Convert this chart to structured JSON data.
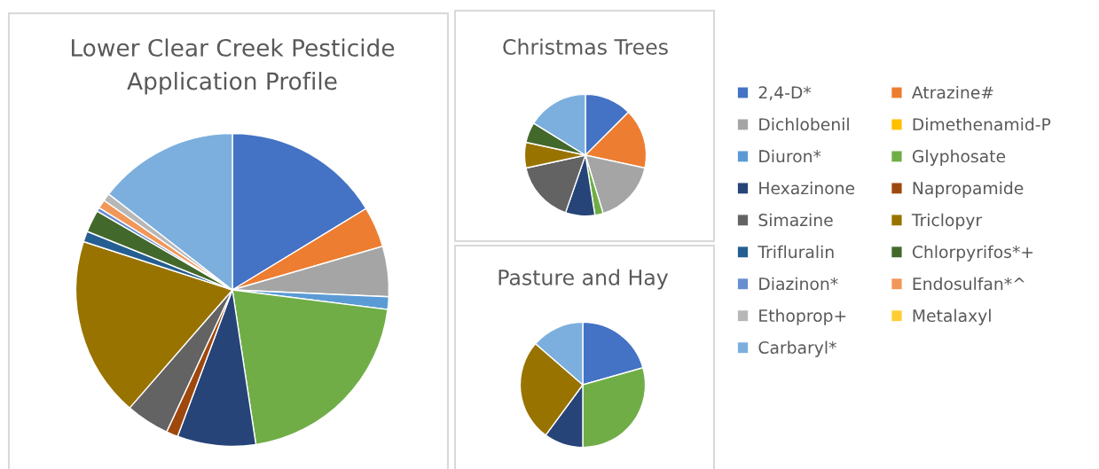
{
  "chart_data": [
    {
      "type": "pie",
      "title": "Lower Clear Creek Pesticide\nApplication Profile",
      "legend": "right",
      "categories": [
        "2,4-D*",
        "Atrazine#",
        "Dichlobenil",
        "Dimethenamid-P",
        "Diuron*",
        "Glyphosate",
        "Hexazinone",
        "Napropamide",
        "Simazine",
        "Triclopyr",
        "Trifluralin",
        "Chlorpyrifos*+",
        "Diazinon*",
        "Endosulfan*^",
        "Ethoprop+",
        "Metalaxyl",
        "Carbaryl*"
      ],
      "values": [
        16.3,
        4.2,
        5.2,
        0,
        1.3,
        20.6,
        8.1,
        1.2,
        4.5,
        18.6,
        1.1,
        2.3,
        0.4,
        0.9,
        0.8,
        0,
        14.5
      ],
      "colors": [
        "#4472c4",
        "#ed7d31",
        "#a5a5a5",
        "#ffc000",
        "#5b9bd5",
        "#70ad47",
        "#264478",
        "#9e480e",
        "#636363",
        "#997300",
        "#255e91",
        "#43682b",
        "#698ed0",
        "#f1975a",
        "#b7b7b7",
        "#ffcd33",
        "#7cafdd"
      ]
    },
    {
      "type": "pie",
      "title": "Christmas Trees",
      "categories": [
        null,
        null,
        null,
        null,
        null,
        null,
        null,
        null,
        null
      ],
      "values": [
        12.5,
        15.9,
        16.9,
        2.2,
        7.8,
        16.3,
        6.8,
        5.4,
        16.2
      ],
      "colors": [
        "#4472c4",
        "#ed7d31",
        "#a5a5a5",
        "#70ad47",
        "#264478",
        "#636363",
        "#997300",
        "#43682b",
        "#7cafdd"
      ]
    },
    {
      "type": "pie",
      "title": "Pasture and Hay",
      "categories": [
        null,
        null,
        null,
        null,
        null
      ],
      "values": [
        20.6,
        29.4,
        10.1,
        26.3,
        13.6
      ],
      "colors": [
        "#4472c4",
        "#70ad47",
        "#264478",
        "#997300",
        "#7cafdd"
      ]
    }
  ]
}
